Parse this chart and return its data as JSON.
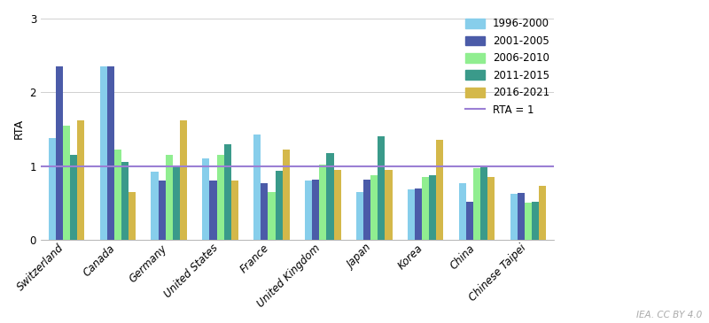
{
  "countries": [
    "Switzerland",
    "Canada",
    "Germany",
    "United States",
    "France",
    "United Kingdom",
    "Japan",
    "Korea",
    "China",
    "Chinese Taipei"
  ],
  "series": {
    "1996-2000": [
      1.38,
      2.35,
      0.92,
      1.1,
      1.43,
      0.8,
      0.65,
      0.68,
      0.77,
      0.62
    ],
    "2001-2005": [
      2.35,
      2.35,
      0.8,
      0.8,
      0.77,
      0.82,
      0.82,
      0.7,
      0.52,
      0.63
    ],
    "2006-2010": [
      1.55,
      1.22,
      1.15,
      1.15,
      0.65,
      1.02,
      0.88,
      0.85,
      0.97,
      0.5
    ],
    "2011-2015": [
      1.15,
      1.05,
      1.0,
      1.3,
      0.93,
      1.17,
      1.4,
      0.88,
      1.0,
      0.52
    ],
    "2016-2021": [
      1.62,
      0.65,
      1.62,
      0.8,
      1.22,
      0.95,
      0.95,
      1.35,
      0.85,
      0.73
    ]
  },
  "colors": {
    "1996-2000": "#87CEEB",
    "2001-2005": "#4B5BA8",
    "2006-2010": "#90EE90",
    "2011-2015": "#3A9A8A",
    "2016-2021": "#D4B84A"
  },
  "ylabel": "RTA",
  "ylim": [
    0,
    3
  ],
  "yticks": [
    0,
    1,
    2,
    3
  ],
  "hline_y": 1.0,
  "hline_color": "#9B7FD4",
  "hline_label": "RTA = 1",
  "watermark": "IEA. CC BY 4.0",
  "bar_width": 0.14,
  "background_color": "#ffffff",
  "grid_color": "#d0d0d0",
  "tick_label_fontsize": 8.5,
  "ylabel_fontsize": 9,
  "legend_fontsize": 8.5
}
